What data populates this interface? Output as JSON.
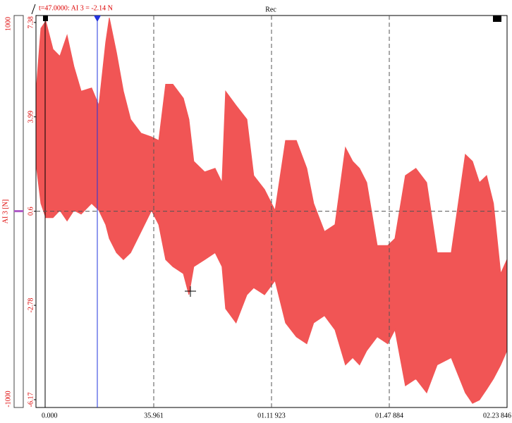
{
  "chart_data": {
    "type": "band",
    "title": "Rec",
    "annotation": "t=47.0000: AI  3 = -2.14 N",
    "y_label": "AI  3  [N]",
    "x": [
      0.2,
      1.5,
      3.0,
      5.2,
      7.3,
      9.5,
      11.6,
      13.8,
      17.0,
      19.2,
      21.3,
      22.4,
      24.6,
      26.7,
      28.9,
      32.1,
      35.3,
      37.5,
      39.6,
      41.8,
      45.0,
      46.7,
      48.2,
      51.5,
      54.7,
      56.8,
      57.9,
      61.1,
      64.4,
      66.5,
      69.8,
      73.0,
      76.2,
      79.5,
      82.7,
      84.8,
      88.1,
      91.3,
      94.5,
      96.7,
      98.8,
      101.0,
      104.2,
      107.4,
      109.6,
      112.8,
      116.0,
      119.3,
      122.5,
      126.8,
      131.1,
      133.3,
      135.4,
      137.6,
      139.7,
      141.9,
      143.8
    ],
    "series": [
      {
        "color": "#f15555",
        "values": [
          5.16,
          7.17,
          7.43,
          6.42,
          6.17,
          6.92,
          5.79,
          4.91,
          5.03,
          4.4,
          6.67,
          7.55,
          6.29,
          4.91,
          3.9,
          3.4,
          3.27,
          3.14,
          5.16,
          5.16,
          4.66,
          3.9,
          2.39,
          2.01,
          2.14,
          1.63,
          4.91,
          4.4,
          3.9,
          1.88,
          1.38,
          0.63,
          3.14,
          3.14,
          2.14,
          0.88,
          -0.13,
          0.12,
          2.89,
          2.39,
          2.14,
          1.63,
          -0.63,
          -0.63,
          -0.38,
          1.88,
          2.14,
          1.63,
          -0.89,
          -0.89,
          2.64,
          2.39,
          1.63,
          1.88,
          0.88,
          -1.64,
          -1.14
        ]
      },
      {
        "color": "#f15555",
        "values": [
          2.14,
          0.88,
          0.37,
          0.37,
          0.63,
          0.25,
          0.63,
          0.5,
          0.88,
          0.63,
          0.12,
          -0.38,
          -0.89,
          -1.14,
          -0.89,
          -0.13,
          0.63,
          0.12,
          -1.14,
          -1.39,
          -1.64,
          -2.4,
          -1.39,
          -1.14,
          -0.89,
          -1.39,
          -2.9,
          -3.41,
          -2.4,
          -2.15,
          -2.4,
          -1.89,
          -3.41,
          -3.91,
          -4.16,
          -3.41,
          -3.15,
          -3.66,
          -4.92,
          -4.66,
          -4.92,
          -4.41,
          -3.91,
          -4.16,
          -3.66,
          -5.67,
          -5.42,
          -5.92,
          -4.92,
          -4.66,
          -5.92,
          -6.3,
          -6.18,
          -5.8,
          -5.42,
          -4.92,
          -4.41
        ]
      }
    ],
    "xlim": [
      0,
      143.846
    ],
    "xticks": [
      {
        "value": 0,
        "label": "0.000"
      },
      35.961,
      {
        "value": 71.923,
        "label": "01.11 923"
      },
      {
        "value": 107.884,
        "label": "01.47 884"
      },
      {
        "value": 143.846,
        "label": "02.23 846"
      }
    ],
    "ylim": [
      -6.45,
      7.63
    ],
    "yticks": [
      -6.17,
      -2.78,
      0.6,
      3.99,
      7.38
    ],
    "y2lim": [
      -1000,
      1000
    ],
    "y2ticks": [
      -1000,
      1000
    ]
  }
}
